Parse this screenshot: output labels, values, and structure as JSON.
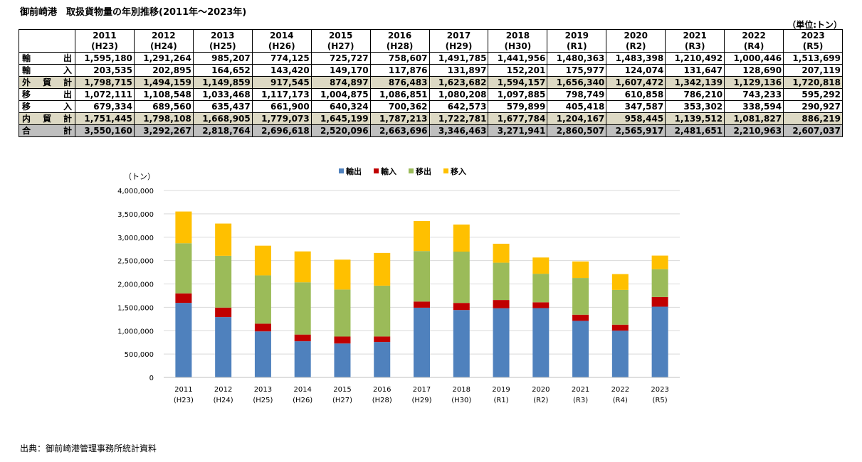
{
  "title": "御前崎港　取扱貨物量の年別推移(2011年～2023年)",
  "unit": "（単位:トン）",
  "table": {
    "columns": [
      {
        "year": "2011",
        "era": "(H23)"
      },
      {
        "year": "2012",
        "era": "(H24)"
      },
      {
        "year": "2013",
        "era": "(H25)"
      },
      {
        "year": "2014",
        "era": "(H26)"
      },
      {
        "year": "2015",
        "era": "(H27)"
      },
      {
        "year": "2016",
        "era": "(H28)"
      },
      {
        "year": "2017",
        "era": "(H29)"
      },
      {
        "year": "2018",
        "era": "(H30)"
      },
      {
        "year": "2019",
        "era": "(R1)"
      },
      {
        "year": "2020",
        "era": "(R2)"
      },
      {
        "year": "2021",
        "era": "(R3)"
      },
      {
        "year": "2022",
        "era": "(R4)"
      },
      {
        "year": "2023",
        "era": "(R5)"
      }
    ],
    "rows": [
      {
        "label": "輸出",
        "style": "plain",
        "values": [
          "1,595,180",
          "1,291,264",
          "985,207",
          "774,125",
          "725,727",
          "758,607",
          "1,491,785",
          "1,441,956",
          "1,480,363",
          "1,483,398",
          "1,210,492",
          "1,000,446",
          "1,513,699"
        ]
      },
      {
        "label": "輸入",
        "style": "plain",
        "values": [
          "203,535",
          "202,895",
          "164,652",
          "143,420",
          "149,170",
          "117,876",
          "131,897",
          "152,201",
          "175,977",
          "124,074",
          "131,647",
          "128,690",
          "207,119"
        ]
      },
      {
        "label": "外貿計",
        "style": "shade",
        "values": [
          "1,798,715",
          "1,494,159",
          "1,149,859",
          "917,545",
          "874,897",
          "876,483",
          "1,623,682",
          "1,594,157",
          "1,656,340",
          "1,607,472",
          "1,342,139",
          "1,129,136",
          "1,720,818"
        ]
      },
      {
        "label": "移出",
        "style": "plain",
        "values": [
          "1,072,111",
          "1,108,548",
          "1,033,468",
          "1,117,173",
          "1,004,875",
          "1,086,851",
          "1,080,208",
          "1,097,885",
          "798,749",
          "610,858",
          "786,210",
          "743,233",
          "595,292"
        ]
      },
      {
        "label": "移入",
        "style": "plain",
        "values": [
          "679,334",
          "689,560",
          "635,437",
          "661,900",
          "640,324",
          "700,362",
          "642,573",
          "579,899",
          "405,418",
          "347,587",
          "353,302",
          "338,594",
          "290,927"
        ]
      },
      {
        "label": "内貿計",
        "style": "shade",
        "values": [
          "1,751,445",
          "1,798,108",
          "1,668,905",
          "1,779,073",
          "1,645,199",
          "1,787,213",
          "1,722,781",
          "1,677,784",
          "1,204,167",
          "958,445",
          "1,139,512",
          "1,081,827",
          "886,219"
        ]
      },
      {
        "label": "合計",
        "style": "total",
        "values": [
          "3,550,160",
          "3,292,267",
          "2,818,764",
          "2,696,618",
          "2,520,096",
          "2,663,696",
          "3,346,463",
          "3,271,941",
          "2,860,507",
          "2,565,917",
          "2,481,651",
          "2,210,963",
          "2,607,037"
        ]
      }
    ]
  },
  "chart_data": {
    "type": "bar",
    "stacked": true,
    "ylabel": "（トン）",
    "ylim": [
      0,
      4000000
    ],
    "yticks": [
      0,
      500000,
      1000000,
      1500000,
      2000000,
      2500000,
      3000000,
      3500000,
      4000000
    ],
    "ytick_labels": [
      "0",
      "500,000",
      "1,000,000",
      "1,500,000",
      "2,000,000",
      "2,500,000",
      "3,000,000",
      "3,500,000",
      "4,000,000"
    ],
    "grid": true,
    "legend": "top-center",
    "categories": [
      {
        "year": "2011",
        "era": "(H23)"
      },
      {
        "year": "2012",
        "era": "(H24)"
      },
      {
        "year": "2013",
        "era": "(H25)"
      },
      {
        "year": "2014",
        "era": "(H26)"
      },
      {
        "year": "2015",
        "era": "(H27)"
      },
      {
        "year": "2016",
        "era": "(H28)"
      },
      {
        "year": "2017",
        "era": "(H29)"
      },
      {
        "year": "2018",
        "era": "(H30)"
      },
      {
        "year": "2019",
        "era": "(R1)"
      },
      {
        "year": "2020",
        "era": "(R2)"
      },
      {
        "year": "2021",
        "era": "(R3)"
      },
      {
        "year": "2022",
        "era": "(R4)"
      },
      {
        "year": "2023",
        "era": "(R5)"
      }
    ],
    "series": [
      {
        "name": "輸出",
        "color": "#4f81bd",
        "values": [
          1595180,
          1291264,
          985207,
          774125,
          725727,
          758607,
          1491785,
          1441956,
          1480363,
          1483398,
          1210492,
          1000446,
          1513699
        ]
      },
      {
        "name": "輸入",
        "color": "#c00000",
        "values": [
          203535,
          202895,
          164652,
          143420,
          149170,
          117876,
          131897,
          152201,
          175977,
          124074,
          131647,
          128690,
          207119
        ]
      },
      {
        "name": "移出",
        "color": "#9bbb59",
        "values": [
          1072111,
          1108548,
          1033468,
          1117173,
          1004875,
          1086851,
          1080208,
          1097885,
          798749,
          610858,
          786210,
          743233,
          595292
        ]
      },
      {
        "name": "移入",
        "color": "#ffc000",
        "values": [
          679334,
          689560,
          635437,
          661900,
          640324,
          700362,
          642573,
          579899,
          405418,
          347587,
          353302,
          338594,
          290927
        ]
      }
    ]
  },
  "source": "出典：御前崎港管理事務所統計資料"
}
